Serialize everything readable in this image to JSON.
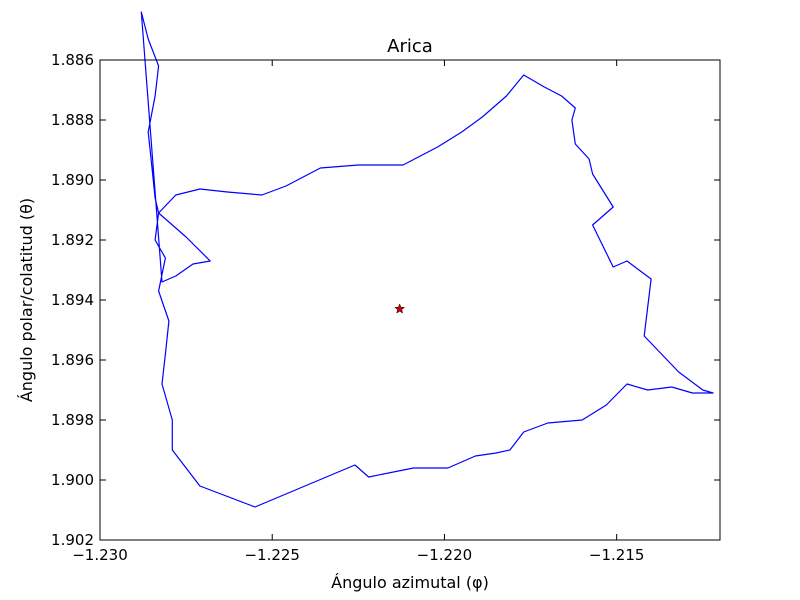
{
  "chart_data": {
    "type": "line",
    "title": "Arica",
    "xlabel": "Ángulo azimutal (φ)",
    "ylabel": "Ángulo polar/colatitud (θ)",
    "xlim": [
      -1.23,
      -1.212
    ],
    "ylim": [
      1.902,
      1.886
    ],
    "y_inverted": true,
    "grid": false,
    "xticks": [
      "−1.230",
      "−1.225",
      "−1.220",
      "−1.215"
    ],
    "xtick_values": [
      -1.23,
      -1.225,
      -1.22,
      -1.215
    ],
    "yticks": [
      "1.886",
      "1.888",
      "1.890",
      "1.892",
      "1.894",
      "1.896",
      "1.898",
      "1.900",
      "1.902"
    ],
    "ytick_values": [
      1.886,
      1.888,
      1.89,
      1.892,
      1.894,
      1.896,
      1.898,
      1.9,
      1.902
    ],
    "series": [
      {
        "kind": "boundary",
        "color": "#0000ff",
        "x": [
          -1.2283,
          -1.2278,
          -1.2271,
          -1.2263,
          -1.2253,
          -1.2246,
          -1.2236,
          -1.2225,
          -1.2212,
          -1.2202,
          -1.2195,
          -1.2189,
          -1.2182,
          -1.2177,
          -1.2171,
          -1.2166,
          -1.2162,
          -1.2163,
          -1.2162,
          -1.2158,
          -1.2157,
          -1.2151,
          -1.2157,
          -1.2151,
          -1.2147,
          -1.214,
          -1.2142,
          -1.2132,
          -1.2125,
          -1.2122,
          -1.2128,
          -1.2134,
          -1.2141,
          -1.2147,
          -1.2153,
          -1.216,
          -1.217,
          -1.2177,
          -1.2181,
          -1.2185,
          -1.2191,
          -1.2199,
          -1.2209,
          -1.2222,
          -1.2226,
          -1.2255,
          -1.2271,
          -1.2279,
          -1.2279,
          -1.2282,
          -1.2281,
          -1.228,
          -1.2283,
          -1.2281,
          -1.2284,
          -1.2283,
          -1.2284,
          -1.2285,
          -1.2286,
          -1.2284,
          -1.2283,
          -1.2286,
          -1.2288,
          -1.2282,
          -1.2278,
          -1.2273,
          -1.2268,
          -1.2275,
          -1.2283
        ],
        "y": [
          1.8911,
          1.8905,
          1.8903,
          1.8904,
          1.8905,
          1.8902,
          1.8896,
          1.8895,
          1.8895,
          1.8889,
          1.8884,
          1.8879,
          1.8872,
          1.8865,
          1.8869,
          1.8872,
          1.8876,
          1.888,
          1.8888,
          1.8893,
          1.8898,
          1.8909,
          1.8915,
          1.8929,
          1.8927,
          1.8933,
          1.8952,
          1.8964,
          1.897,
          1.8971,
          1.8971,
          1.8969,
          1.897,
          1.8968,
          1.8975,
          1.898,
          1.8981,
          1.8984,
          1.899,
          1.8991,
          1.8992,
          1.8996,
          1.8996,
          1.8999,
          1.8995,
          1.9009,
          1.9002,
          1.899,
          1.898,
          1.8968,
          1.8958,
          1.8947,
          1.8937,
          1.8926,
          1.892,
          1.8911,
          1.8906,
          1.8895,
          1.8884,
          1.8872,
          1.8862,
          1.8853,
          1.8844,
          1.8934,
          1.8932,
          1.8928,
          1.8927,
          1.8919,
          1.8911
        ]
      }
    ],
    "marker": {
      "x": -1.2213,
      "y": 1.8943,
      "symbol": "star",
      "color": "#cc0000"
    }
  }
}
